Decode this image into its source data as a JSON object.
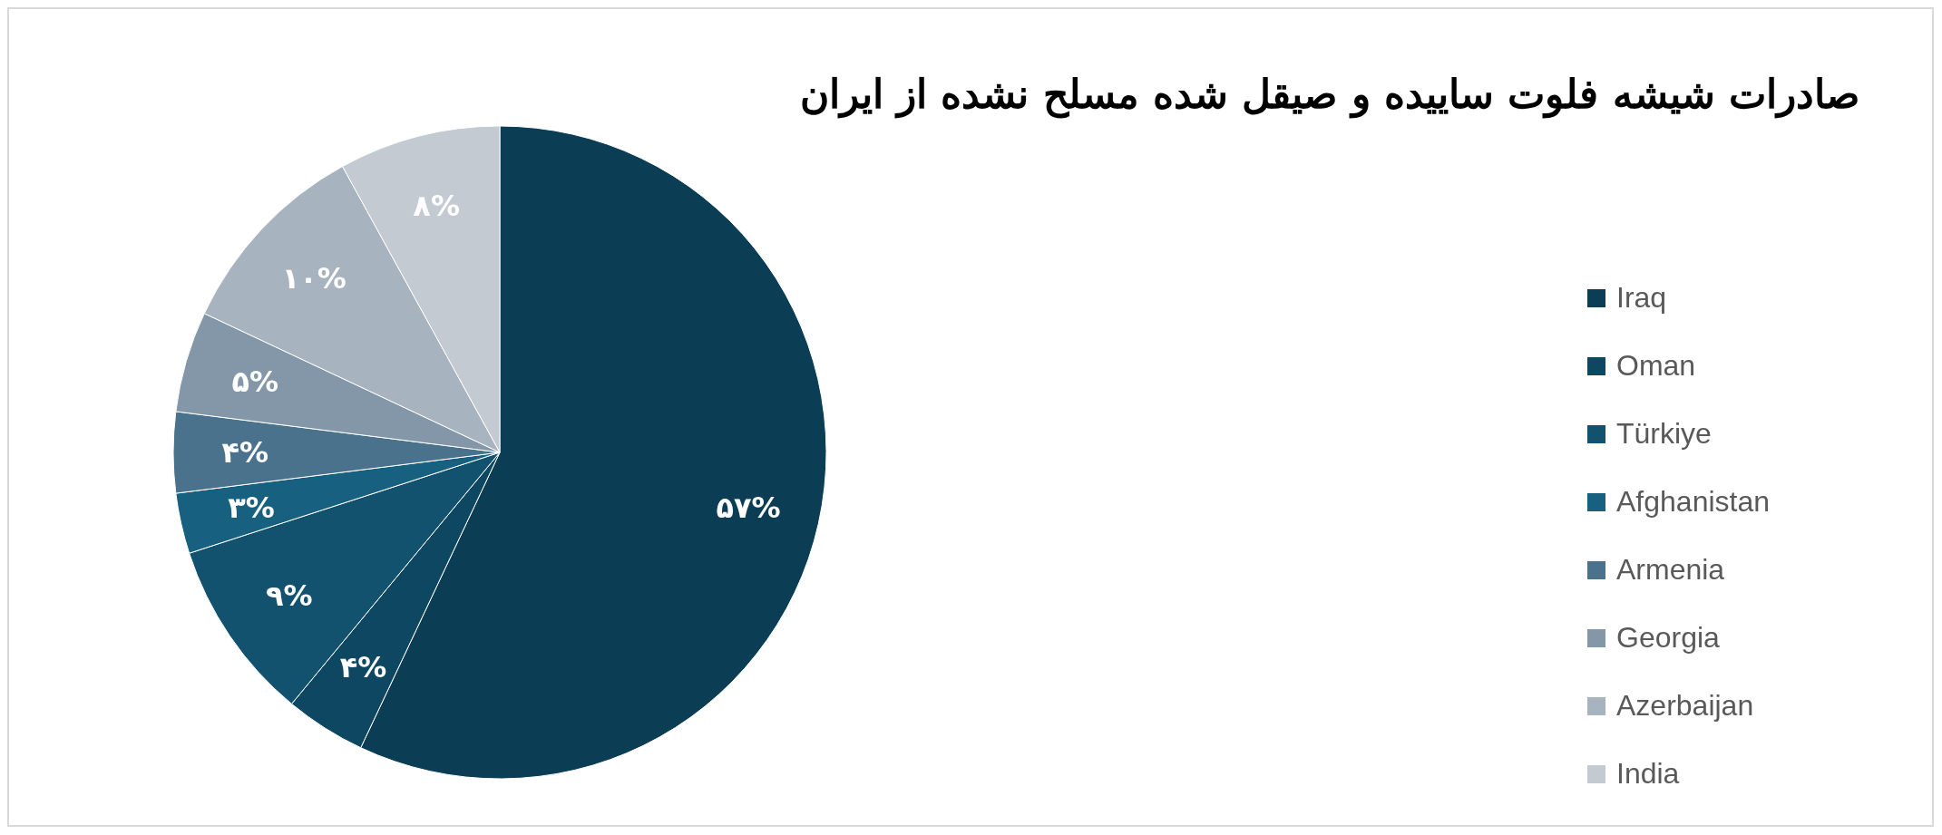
{
  "chart_data": {
    "type": "pie",
    "title": "صادرات شیشه فلوت ساییده و صیقل شده مسلح نشده از ایران",
    "categories": [
      "Iraq",
      "Oman",
      "Türkiye",
      "Afghanistan",
      "Armenia",
      "Georgia",
      "Azerbaijan",
      "India"
    ],
    "values": [
      57,
      4,
      9,
      3,
      4,
      5,
      10,
      8
    ],
    "value_labels": [
      "۵۷%",
      "۴%",
      "۹%",
      "۳%",
      "۴%",
      "۵%",
      "۱۰%",
      "۸%"
    ],
    "colors": [
      "#0b3d55",
      "#0e4762",
      "#12526f",
      "#17607f",
      "#4a728c",
      "#8497a8",
      "#a7b3bf",
      "#c4cad2"
    ],
    "legend": "right"
  }
}
